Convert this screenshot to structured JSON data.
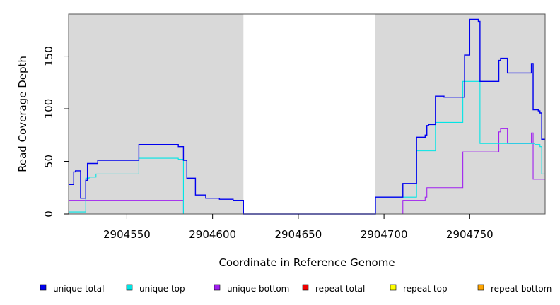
{
  "chart_data": {
    "type": "line",
    "title": "",
    "xlabel": "Coordinate in Reference Genome",
    "ylabel": "Read Coverage Depth",
    "xlim": [
      2904516,
      2904794
    ],
    "ylim": [
      0,
      190
    ],
    "x_ticks": [
      2904550,
      2904600,
      2904650,
      2904700,
      2904750
    ],
    "y_ticks": [
      0,
      50,
      100,
      150
    ],
    "grid": false,
    "legend_position": "bottom",
    "shaded_regions": [
      {
        "x0": 2904516,
        "x1": 2904618,
        "color": "#d9d9d9"
      },
      {
        "x0": 2904695,
        "x1": 2904794,
        "color": "#d9d9d9"
      }
    ],
    "series": [
      {
        "name": "unique total",
        "color": "#0000ee",
        "points": [
          [
            2904516,
            28
          ],
          [
            2904519,
            28
          ],
          [
            2904519,
            40
          ],
          [
            2904520,
            40
          ],
          [
            2904520,
            41
          ],
          [
            2904523,
            41
          ],
          [
            2904523,
            15
          ],
          [
            2904526,
            15
          ],
          [
            2904526,
            32
          ],
          [
            2904527,
            32
          ],
          [
            2904527,
            48
          ],
          [
            2904533,
            48
          ],
          [
            2904533,
            51
          ],
          [
            2904557,
            51
          ],
          [
            2904557,
            66
          ],
          [
            2904580,
            66
          ],
          [
            2904580,
            64
          ],
          [
            2904583,
            64
          ],
          [
            2904583,
            51
          ],
          [
            2904585,
            51
          ],
          [
            2904585,
            34
          ],
          [
            2904590,
            34
          ],
          [
            2904590,
            18
          ],
          [
            2904596,
            18
          ],
          [
            2904596,
            15
          ],
          [
            2904604,
            15
          ],
          [
            2904604,
            14
          ],
          [
            2904612,
            14
          ],
          [
            2904612,
            13
          ],
          [
            2904618,
            13
          ],
          [
            2904618,
            0
          ],
          [
            2904695,
            0
          ],
          [
            2904695,
            16
          ],
          [
            2904711,
            16
          ],
          [
            2904711,
            29
          ],
          [
            2904719,
            29
          ],
          [
            2904719,
            73
          ],
          [
            2904724,
            73
          ],
          [
            2904724,
            75
          ],
          [
            2904725,
            75
          ],
          [
            2904725,
            84
          ],
          [
            2904726,
            84
          ],
          [
            2904726,
            85
          ],
          [
            2904730,
            85
          ],
          [
            2904730,
            112
          ],
          [
            2904735,
            112
          ],
          [
            2904735,
            111
          ],
          [
            2904747,
            111
          ],
          [
            2904747,
            151
          ],
          [
            2904750,
            151
          ],
          [
            2904750,
            185
          ],
          [
            2904755,
            185
          ],
          [
            2904755,
            183
          ],
          [
            2904756,
            183
          ],
          [
            2904756,
            126
          ],
          [
            2904767,
            126
          ],
          [
            2904767,
            146
          ],
          [
            2904768,
            146
          ],
          [
            2904768,
            148
          ],
          [
            2904772,
            148
          ],
          [
            2904772,
            134
          ],
          [
            2904786,
            134
          ],
          [
            2904786,
            143
          ],
          [
            2904787,
            143
          ],
          [
            2904787,
            99
          ],
          [
            2904790,
            99
          ],
          [
            2904790,
            98
          ],
          [
            2904791,
            98
          ],
          [
            2904791,
            96
          ],
          [
            2904792,
            96
          ],
          [
            2904792,
            71
          ],
          [
            2904794,
            71
          ]
        ]
      },
      {
        "name": "unique top",
        "color": "#00e5e5",
        "points": [
          [
            2904516,
            2
          ],
          [
            2904526,
            2
          ],
          [
            2904526,
            34
          ],
          [
            2904528,
            34
          ],
          [
            2904528,
            35
          ],
          [
            2904532,
            35
          ],
          [
            2904532,
            38
          ],
          [
            2904557,
            38
          ],
          [
            2904557,
            53
          ],
          [
            2904580,
            53
          ],
          [
            2904580,
            52
          ],
          [
            2904583,
            52
          ],
          [
            2904583,
            0
          ],
          [
            2904695,
            0
          ],
          [
            2904695,
            16
          ],
          [
            2904719,
            16
          ],
          [
            2904719,
            60
          ],
          [
            2904730,
            60
          ],
          [
            2904730,
            87
          ],
          [
            2904746,
            87
          ],
          [
            2904746,
            126
          ],
          [
            2904756,
            126
          ],
          [
            2904756,
            67
          ],
          [
            2904788,
            67
          ],
          [
            2904788,
            66
          ],
          [
            2904791,
            66
          ],
          [
            2904791,
            64
          ],
          [
            2904792,
            64
          ],
          [
            2904792,
            38
          ],
          [
            2904794,
            38
          ]
        ]
      },
      {
        "name": "unique bottom",
        "color": "#a020f0",
        "points": [
          [
            2904516,
            13
          ],
          [
            2904583,
            13
          ],
          [
            2904583,
            0
          ],
          [
            2904711,
            0
          ],
          [
            2904711,
            13
          ],
          [
            2904724,
            13
          ],
          [
            2904724,
            16
          ],
          [
            2904725,
            16
          ],
          [
            2904725,
            25
          ],
          [
            2904746,
            25
          ],
          [
            2904746,
            59
          ],
          [
            2904767,
            59
          ],
          [
            2904767,
            78
          ],
          [
            2904768,
            78
          ],
          [
            2904768,
            81
          ],
          [
            2904772,
            81
          ],
          [
            2904772,
            67
          ],
          [
            2904786,
            67
          ],
          [
            2904786,
            77
          ],
          [
            2904787,
            77
          ],
          [
            2904787,
            33
          ],
          [
            2904794,
            33
          ]
        ]
      },
      {
        "name": "repeat total",
        "color": "#ee0000",
        "points": [
          [
            2904516,
            0
          ],
          [
            2904794,
            0
          ]
        ]
      },
      {
        "name": "repeat top",
        "color": "#ffff00",
        "points": [
          [
            2904516,
            0
          ],
          [
            2904794,
            0
          ]
        ]
      },
      {
        "name": "repeat bottom",
        "color": "#ffa500",
        "points": [
          [
            2904516,
            0
          ],
          [
            2904794,
            0
          ]
        ]
      }
    ]
  }
}
